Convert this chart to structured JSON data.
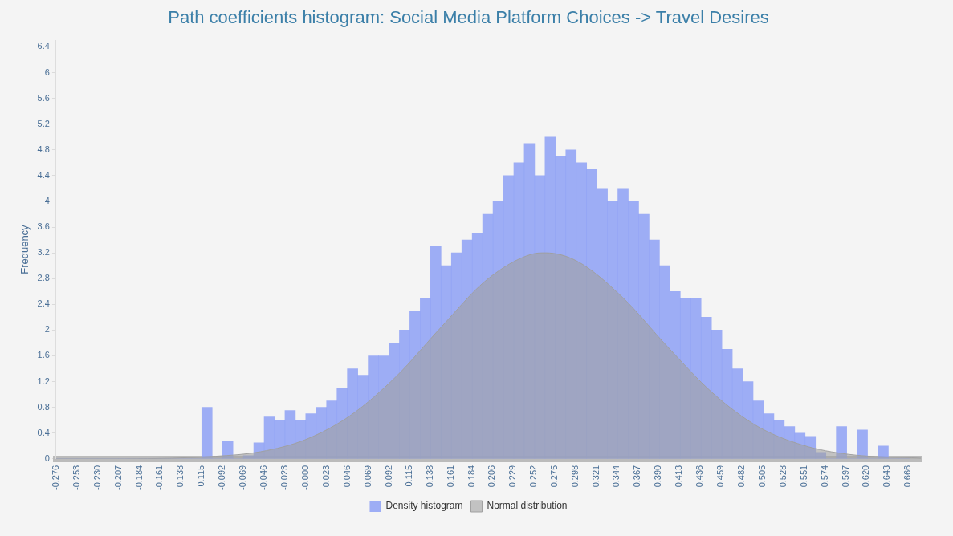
{
  "chart_data": {
    "type": "histogram",
    "title": "Path coefficients histogram: Social Media Platform Choices -> Travel Desires",
    "ylabel": "Frequency",
    "bins": [
      -0.276,
      -0.2645,
      -0.253,
      -0.2415,
      -0.23,
      -0.2185,
      -0.207,
      -0.1955,
      -0.184,
      -0.1725,
      -0.161,
      -0.1495,
      -0.138,
      -0.1265,
      -0.115,
      -0.1035,
      -0.092,
      -0.0805,
      -0.069,
      -0.0575,
      -0.046,
      -0.0345,
      -0.023,
      -0.0115,
      0,
      0.0115,
      0.023,
      0.0345,
      0.046,
      0.0575,
      0.069,
      0.0805,
      0.092,
      0.1035,
      0.115,
      0.1265,
      0.138,
      0.1495,
      0.161,
      0.1725,
      0.184,
      0.1955,
      0.207,
      0.2185,
      0.23,
      0.2415,
      0.253,
      0.2645,
      0.276,
      0.2875,
      0.299,
      0.3105,
      0.322,
      0.3335,
      0.345,
      0.3565,
      0.368,
      0.3795,
      0.391,
      0.4025,
      0.414,
      0.4255,
      0.437,
      0.4485,
      0.46,
      0.4715,
      0.483,
      0.4945,
      0.506,
      0.5175,
      0.529,
      0.5405,
      0.552,
      0.5635,
      0.575,
      0.5865,
      0.598,
      0.6095,
      0.621,
      0.6325,
      0.644,
      0.6555,
      0.667
    ],
    "series": [
      {
        "name": "Density histogram",
        "color": "#8fa1f5",
        "values": [
          0,
          0,
          0,
          0,
          0,
          0,
          0,
          0,
          0,
          0,
          0,
          0,
          0,
          0,
          0.8,
          0,
          0.28,
          0,
          0.05,
          0.25,
          0.65,
          0.6,
          0.75,
          0.6,
          0.7,
          0.8,
          0.9,
          1.1,
          1.4,
          1.3,
          1.6,
          1.6,
          1.8,
          2.0,
          2.3,
          2.5,
          3.3,
          3.0,
          3.2,
          3.4,
          3.5,
          3.8,
          4.0,
          4.4,
          4.6,
          4.9,
          4.4,
          5.0,
          4.7,
          4.8,
          4.6,
          4.5,
          4.2,
          4.0,
          4.2,
          4.0,
          3.8,
          3.4,
          3.0,
          2.6,
          2.5,
          2.5,
          2.2,
          2.0,
          1.7,
          1.4,
          1.2,
          0.9,
          0.7,
          0.6,
          0.5,
          0.4,
          0.35,
          0.1,
          0,
          0.5,
          0,
          0.45,
          0,
          0.2,
          0,
          0
        ]
      },
      {
        "name": "Normal distribution",
        "type": "area",
        "color": "#a0a0a0",
        "x": [
          -0.276,
          -0.2,
          -0.1,
          -0.05,
          0,
          0.05,
          0.1,
          0.15,
          0.2,
          0.25,
          0.265,
          0.3,
          0.35,
          0.4,
          0.45,
          0.5,
          0.55,
          0.6,
          0.68
        ],
        "values": [
          0,
          0,
          0.04,
          0.11,
          0.3,
          0.68,
          1.28,
          2.05,
          2.78,
          3.18,
          3.2,
          3.07,
          2.51,
          1.74,
          1.02,
          0.5,
          0.21,
          0.07,
          0.01
        ]
      }
    ],
    "xlim": [
      -0.276,
      0.68
    ],
    "xticks": [
      -0.276,
      -0.253,
      {
        "value": -0.23,
        "label": "-0.230"
      },
      -0.207,
      -0.184,
      -0.161,
      -0.138,
      -0.115,
      -0.092,
      -0.069,
      -0.046,
      -0.023,
      {
        "value": 0,
        "label": "-0.000"
      },
      0.023,
      0.046,
      0.069,
      0.092,
      0.115,
      0.138,
      0.161,
      0.184,
      0.206,
      0.229,
      0.252,
      0.275,
      0.298,
      0.321,
      0.344,
      0.367,
      {
        "value": 0.39,
        "label": "0.390"
      },
      0.413,
      0.436,
      0.459,
      0.482,
      0.505,
      0.528,
      0.551,
      0.574,
      0.597,
      {
        "value": 0.62,
        "label": "0.620"
      },
      0.643,
      0.666
    ],
    "ylim": [
      0,
      6.5
    ],
    "yticks": [
      0,
      0.4,
      0.8,
      1.2,
      1.6,
      2,
      2.4,
      2.8,
      3.2,
      3.6,
      4,
      4.4,
      4.8,
      5.2,
      5.6,
      6,
      6.4
    ],
    "legend": "bottom",
    "grid": false
  }
}
